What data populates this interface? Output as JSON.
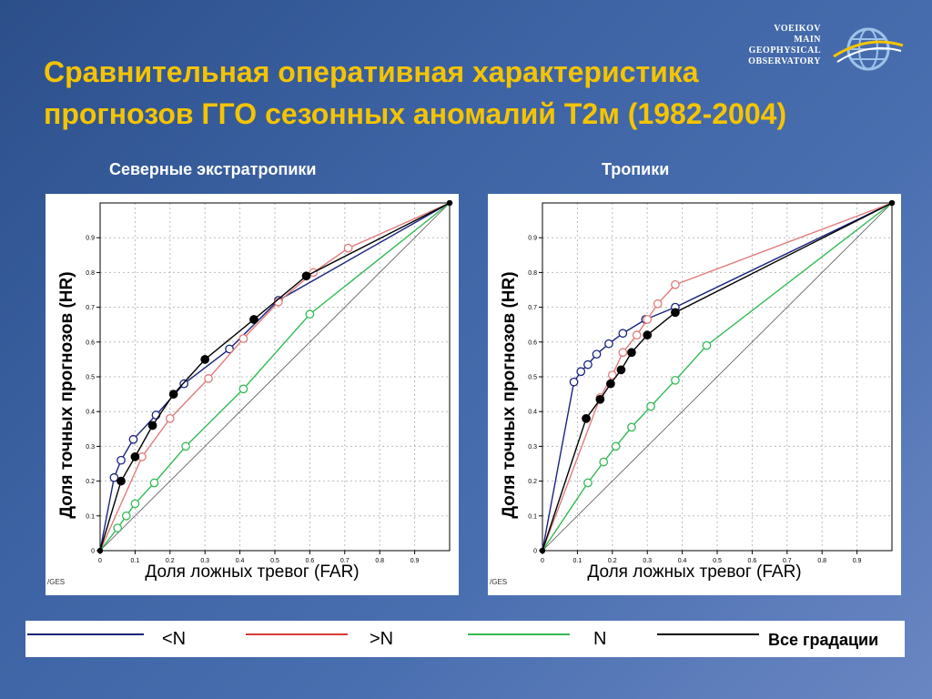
{
  "slide": {
    "title_line1": "Сравнительная оперативная характеристика",
    "title_line2": "прогнозов ГГО сезонных аномалий Т2м (1982-2004)",
    "logo_lines": [
      "VOEIKOV",
      "MAIN",
      "GEOPHYSICAL",
      "OBSERVATORY"
    ]
  },
  "colors": {
    "title": "#f5c400",
    "below": "#1a237e",
    "above": "#e07b7b",
    "normal": "#33bb55",
    "all": "#000000",
    "diagonal": "#555555"
  },
  "legend": {
    "items": [
      {
        "key": "below",
        "label": "<N",
        "color": "#1a237e"
      },
      {
        "key": "above",
        "label": ">N",
        "color": "#d93a3a"
      },
      {
        "key": "normal",
        "label": "N",
        "color": "#33bb55"
      },
      {
        "key": "all",
        "label": "Все градации",
        "color": "#000000"
      }
    ]
  },
  "chart_data": [
    {
      "type": "line",
      "title": "Северные экстратропики",
      "xlabel": "Доля ложных тревог   (FAR)",
      "ylabel": "Доля точных прогнозов  (HR)",
      "watermark": "/GES",
      "xlim": [
        0,
        1
      ],
      "ylim": [
        0,
        1
      ],
      "xticks": [
        0,
        0.1,
        0.2,
        0.3,
        0.4,
        0.5,
        0.6,
        0.7,
        0.8,
        0.9
      ],
      "xticklabels": [
        "0",
        "0.1",
        "0.2",
        "0.3",
        "0.4",
        "0.5",
        "0.6",
        "0.7",
        "0.8",
        "0.9"
      ],
      "yticks": [
        0,
        0.1,
        0.2,
        0.3,
        0.4,
        0.5,
        0.6,
        0.7,
        0.8,
        0.9
      ],
      "yticklabels": [
        "0",
        "0.1",
        "0.2",
        "0.3",
        "0.4",
        "0.5",
        "0.6",
        "0.7",
        "0.8",
        "0.9"
      ],
      "grid": true,
      "series": [
        {
          "name": "<N",
          "color": "#1a237e",
          "marker": "open",
          "x": [
            0,
            0.04,
            0.06,
            0.095,
            0.16,
            0.24,
            0.37,
            0.51,
            1.0
          ],
          "y": [
            0,
            0.21,
            0.26,
            0.32,
            0.39,
            0.48,
            0.58,
            0.72,
            1.0
          ]
        },
        {
          "name": ">N",
          "color": "#e07b7b",
          "marker": "open",
          "x": [
            0,
            0.12,
            0.2,
            0.31,
            0.41,
            0.51,
            0.61,
            0.71,
            1.0
          ],
          "y": [
            0,
            0.27,
            0.38,
            0.495,
            0.61,
            0.715,
            0.8,
            0.87,
            1.0
          ]
        },
        {
          "name": "N",
          "color": "#33bb55",
          "marker": "open",
          "x": [
            0,
            0.05,
            0.075,
            0.1,
            0.155,
            0.245,
            0.41,
            0.6,
            1.0
          ],
          "y": [
            0,
            0.065,
            0.1,
            0.135,
            0.195,
            0.3,
            0.465,
            0.68,
            1.0
          ]
        },
        {
          "name": "Все градации",
          "color": "#000000",
          "marker": "filled",
          "x": [
            0,
            0.06,
            0.1,
            0.15,
            0.21,
            0.3,
            0.44,
            0.59,
            1.0
          ],
          "y": [
            0,
            0.2,
            0.27,
            0.36,
            0.45,
            0.55,
            0.665,
            0.79,
            1.0
          ]
        }
      ]
    },
    {
      "type": "line",
      "title": "Тропики",
      "xlabel": "Доля ложных тревог   (FAR)",
      "ylabel": "Доля точных прогнозов  (HR)",
      "watermark": "/GES",
      "xlim": [
        0,
        1
      ],
      "ylim": [
        0,
        1
      ],
      "xticks": [
        0,
        0.1,
        0.2,
        0.3,
        0.4,
        0.5,
        0.6,
        0.7,
        0.8,
        0.9
      ],
      "xticklabels": [
        "0",
        "0.1",
        "0.2",
        "0.3",
        "0.4",
        "0.5",
        "0.6",
        "0.7",
        "0.8",
        "0.9"
      ],
      "yticks": [
        0,
        0.1,
        0.2,
        0.3,
        0.4,
        0.5,
        0.6,
        0.7,
        0.8,
        0.9
      ],
      "yticklabels": [
        "0",
        "0.1",
        "0.2",
        "0.3",
        "0.4",
        "0.5",
        "0.6",
        "0.7",
        "0.8",
        "0.9"
      ],
      "grid": true,
      "series": [
        {
          "name": "<N",
          "color": "#1a237e",
          "marker": "open",
          "x": [
            0,
            0.09,
            0.11,
            0.13,
            0.155,
            0.19,
            0.23,
            0.295,
            0.38,
            1.0
          ],
          "y": [
            0,
            0.485,
            0.515,
            0.535,
            0.565,
            0.595,
            0.625,
            0.665,
            0.7,
            1.0
          ]
        },
        {
          "name": ">N",
          "color": "#e07b7b",
          "marker": "open",
          "x": [
            0,
            0.165,
            0.2,
            0.23,
            0.27,
            0.3,
            0.33,
            0.38,
            1.0
          ],
          "y": [
            0,
            0.44,
            0.505,
            0.57,
            0.62,
            0.665,
            0.71,
            0.765,
            1.0
          ]
        },
        {
          "name": "N",
          "color": "#33bb55",
          "marker": "open",
          "x": [
            0,
            0.13,
            0.175,
            0.21,
            0.255,
            0.31,
            0.38,
            0.47,
            1.0
          ],
          "y": [
            0,
            0.195,
            0.255,
            0.3,
            0.355,
            0.415,
            0.49,
            0.59,
            1.0
          ]
        },
        {
          "name": "Все градации",
          "color": "#000000",
          "marker": "filled",
          "x": [
            0,
            0.125,
            0.165,
            0.195,
            0.225,
            0.255,
            0.3,
            0.38,
            1.0
          ],
          "y": [
            0,
            0.38,
            0.435,
            0.48,
            0.52,
            0.57,
            0.62,
            0.685,
            1.0
          ]
        }
      ]
    }
  ]
}
